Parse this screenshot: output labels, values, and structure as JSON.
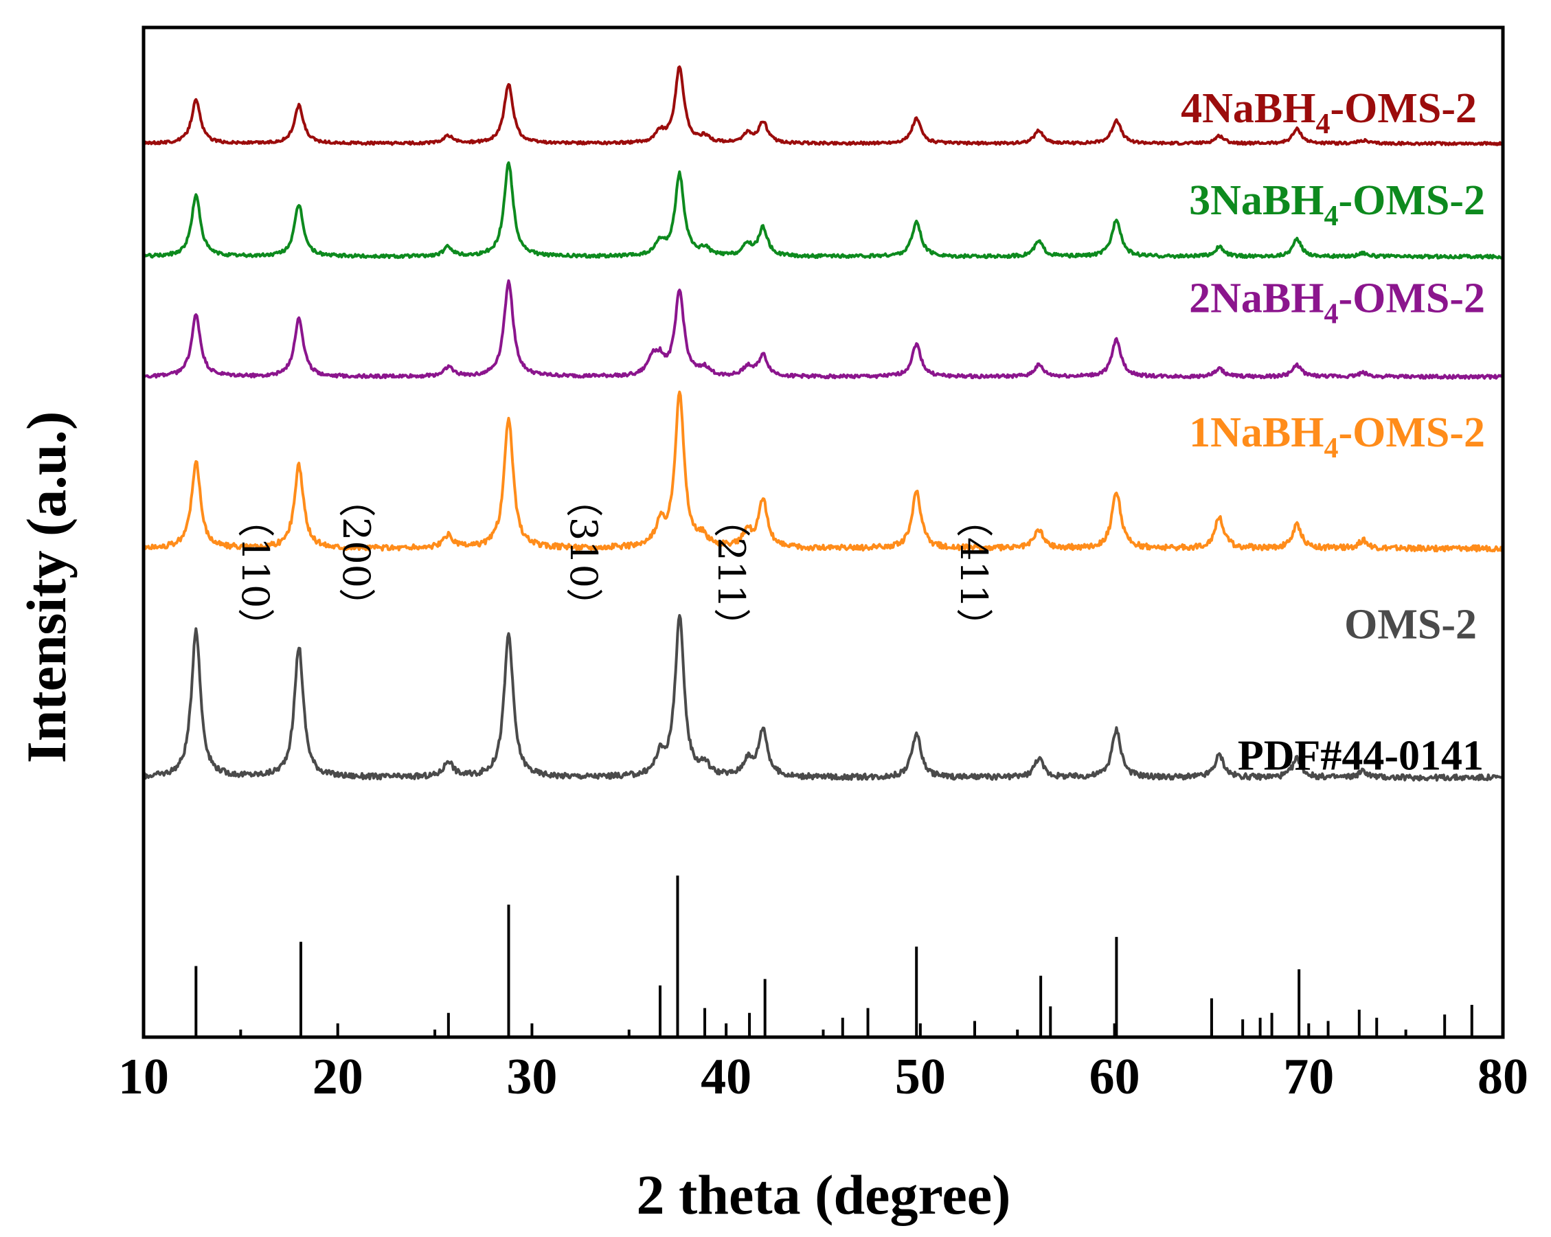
{
  "chart_data": {
    "type": "line",
    "title": "",
    "xlabel": "2 theta (degree)",
    "ylabel": "Intensity (a.u.)",
    "xlim": [
      10,
      80
    ],
    "x_ticks": [
      10,
      20,
      30,
      40,
      50,
      60,
      70,
      80
    ],
    "x_tick_labels": [
      "10",
      "20",
      "30",
      "40",
      "50",
      "60",
      "70",
      "80"
    ],
    "peak_width": 0.28,
    "series": [
      {
        "name": "4NaBH4-OMS-2",
        "label_main": "4NaBH",
        "label_sub": "4",
        "label_tail": "-OMS-2",
        "color": "#9b0c0c",
        "baseline_frac": 0.885,
        "peak_scale_frac": 0.075,
        "noise_seed": 4,
        "peaks": [
          [
            12.7,
            0.57
          ],
          [
            18.0,
            0.5
          ],
          [
            25.7,
            0.1
          ],
          [
            28.8,
            0.78
          ],
          [
            36.6,
            0.14
          ],
          [
            37.6,
            1.0
          ],
          [
            38.9,
            0.08
          ],
          [
            41.1,
            0.12
          ],
          [
            41.9,
            0.28
          ],
          [
            49.8,
            0.33
          ],
          [
            56.1,
            0.17
          ],
          [
            60.1,
            0.31
          ],
          [
            65.4,
            0.1
          ],
          [
            69.4,
            0.19
          ],
          [
            72.8,
            0.04
          ]
        ]
      },
      {
        "name": "3NaBH4-OMS-2",
        "label_main": "3NaBH",
        "label_sub": "4",
        "label_tail": "-OMS-2",
        "color": "#0d8a1e",
        "baseline_frac": 0.773,
        "peak_scale_frac": 0.093,
        "noise_seed": 3,
        "peaks": [
          [
            12.7,
            0.65
          ],
          [
            18.0,
            0.55
          ],
          [
            25.7,
            0.1
          ],
          [
            28.8,
            1.0
          ],
          [
            36.6,
            0.14
          ],
          [
            37.6,
            0.87
          ],
          [
            38.9,
            0.08
          ],
          [
            41.1,
            0.12
          ],
          [
            41.9,
            0.3
          ],
          [
            49.8,
            0.37
          ],
          [
            56.1,
            0.16
          ],
          [
            60.1,
            0.4
          ],
          [
            65.4,
            0.1
          ],
          [
            69.4,
            0.18
          ],
          [
            72.8,
            0.04
          ]
        ]
      },
      {
        "name": "2NaBH4-OMS-2",
        "label_main": "2NaBH",
        "label_sub": "4",
        "label_tail": "-OMS-2",
        "color": "#8b158d",
        "baseline_frac": 0.654,
        "peak_scale_frac": 0.095,
        "noise_seed": 2,
        "peaks": [
          [
            12.7,
            0.64
          ],
          [
            18.0,
            0.61
          ],
          [
            25.7,
            0.1
          ],
          [
            28.8,
            1.0
          ],
          [
            36.2,
            0.18
          ],
          [
            36.6,
            0.16
          ],
          [
            37.6,
            0.88
          ],
          [
            38.9,
            0.08
          ],
          [
            41.1,
            0.1
          ],
          [
            41.9,
            0.22
          ],
          [
            49.8,
            0.34
          ],
          [
            56.1,
            0.12
          ],
          [
            60.1,
            0.39
          ],
          [
            65.4,
            0.08
          ],
          [
            69.4,
            0.12
          ],
          [
            72.8,
            0.04
          ]
        ]
      },
      {
        "name": "1NaBH4-OMS-2",
        "label_main": "1NaBH",
        "label_sub": "4",
        "label_tail": "-OMS-2",
        "color": "#ff8c1a",
        "baseline_frac": 0.484,
        "peak_scale_frac": 0.155,
        "noise_seed": 1,
        "peaks": [
          [
            12.7,
            0.55
          ],
          [
            18.0,
            0.53
          ],
          [
            25.7,
            0.08
          ],
          [
            28.8,
            0.83
          ],
          [
            36.6,
            0.14
          ],
          [
            37.6,
            1.0
          ],
          [
            38.8,
            0.06
          ],
          [
            41.1,
            0.1
          ],
          [
            41.9,
            0.3
          ],
          [
            49.8,
            0.36
          ],
          [
            56.1,
            0.12
          ],
          [
            60.1,
            0.36
          ],
          [
            65.4,
            0.2
          ],
          [
            69.4,
            0.15
          ],
          [
            72.8,
            0.05
          ]
        ]
      },
      {
        "name": "OMS-2",
        "label_main": "OMS-2",
        "label_sub": "",
        "label_tail": "",
        "color": "#4a4a4a",
        "baseline_frac": 0.257,
        "peak_scale_frac": 0.158,
        "noise_seed": 0,
        "peaks": [
          [
            12.7,
            0.93
          ],
          [
            18.0,
            0.82
          ],
          [
            25.7,
            0.1
          ],
          [
            28.8,
            0.9
          ],
          [
            36.6,
            0.12
          ],
          [
            37.6,
            1.0
          ],
          [
            38.9,
            0.07
          ],
          [
            41.1,
            0.1
          ],
          [
            41.9,
            0.3
          ],
          [
            49.8,
            0.28
          ],
          [
            56.1,
            0.12
          ],
          [
            60.1,
            0.3
          ],
          [
            65.4,
            0.14
          ],
          [
            69.4,
            0.12
          ],
          [
            72.8,
            0.04
          ]
        ]
      }
    ],
    "reference": {
      "name": "PDF#44-0141",
      "color": "#000000",
      "baseline_frac": 0.0,
      "peak_scale_frac": 0.16,
      "lines": [
        [
          12.7,
          0.44
        ],
        [
          18.1,
          0.59
        ],
        [
          25.7,
          0.15
        ],
        [
          28.8,
          0.82
        ],
        [
          36.6,
          0.32
        ],
        [
          37.5,
          1.0
        ],
        [
          38.9,
          0.18
        ],
        [
          41.2,
          0.15
        ],
        [
          42.0,
          0.36
        ],
        [
          46.0,
          0.12
        ],
        [
          47.3,
          0.18
        ],
        [
          49.8,
          0.56
        ],
        [
          52.8,
          0.1
        ],
        [
          56.2,
          0.38
        ],
        [
          56.7,
          0.19
        ],
        [
          60.1,
          0.62
        ],
        [
          65.0,
          0.24
        ],
        [
          66.6,
          0.11
        ],
        [
          67.5,
          0.12
        ],
        [
          68.1,
          0.15
        ],
        [
          69.5,
          0.42
        ],
        [
          71.0,
          0.1
        ],
        [
          72.6,
          0.17
        ],
        [
          73.5,
          0.12
        ],
        [
          77.0,
          0.14
        ],
        [
          78.4,
          0.2
        ]
      ]
    },
    "annotations": [
      {
        "text": "（110）",
        "x": 15.1,
        "y_frac": 0.46
      },
      {
        "text": "（200）",
        "x": 20.3,
        "y_frac": 0.48
      },
      {
        "text": "（310）",
        "x": 32.0,
        "y_frac": 0.48
      },
      {
        "text": "（211）",
        "x": 39.6,
        "y_frac": 0.46
      },
      {
        "text": "（411）",
        "x": 52.1,
        "y_frac": 0.46
      }
    ]
  }
}
